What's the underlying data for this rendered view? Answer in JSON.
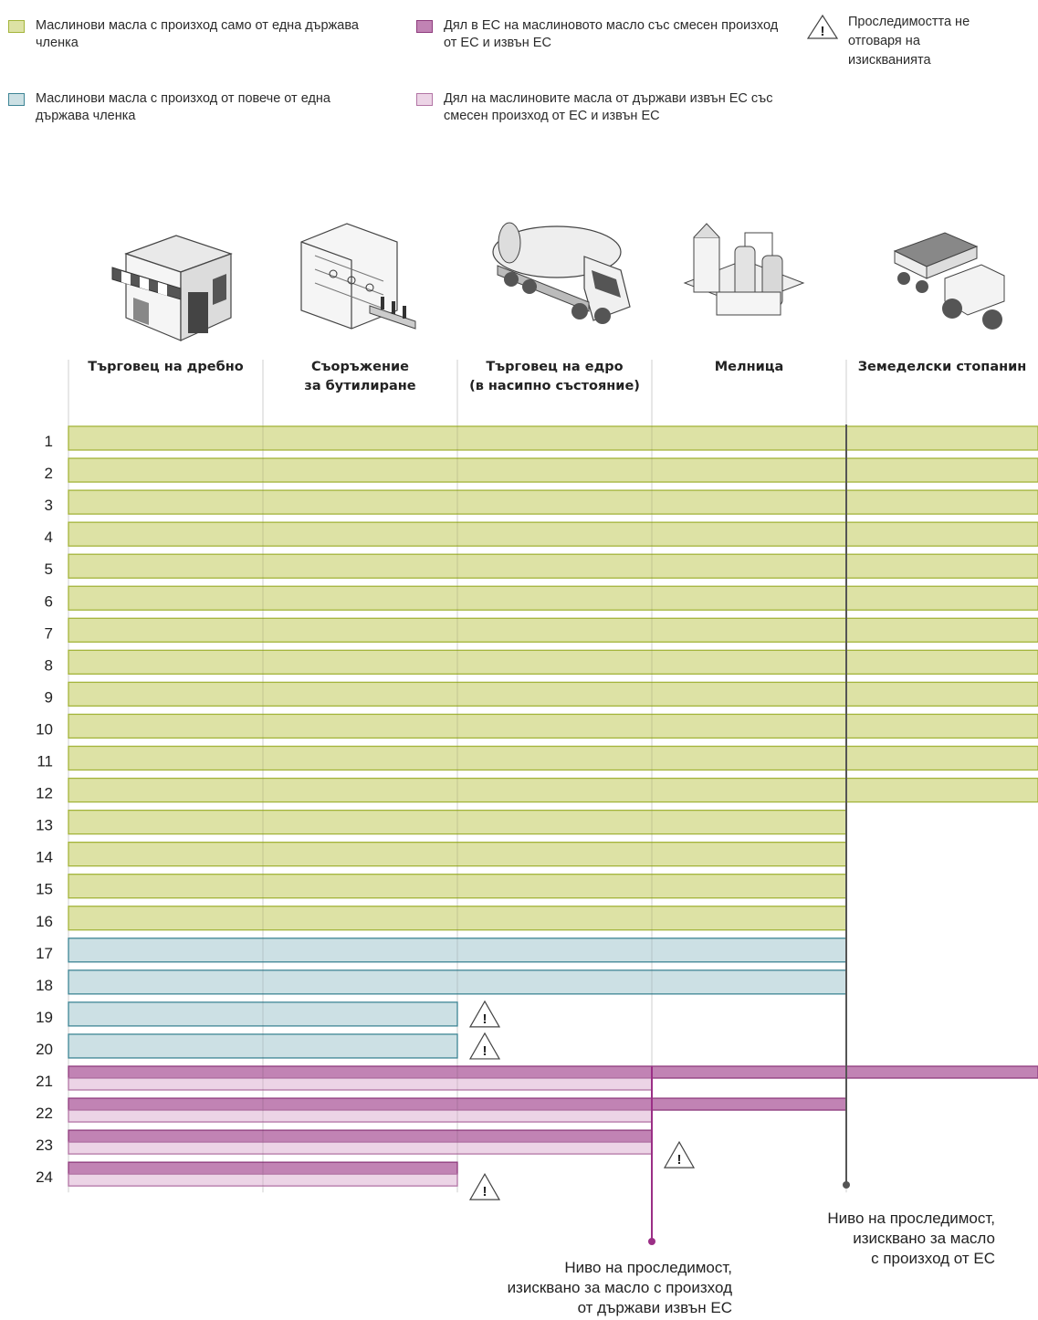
{
  "legend": {
    "single_ms": "Маслинови масла с произход само от една държава членка",
    "multi_ms": "Маслинови масла с произход от повече от една държава членка",
    "eu_share": "Дял в ЕС на маслиновото масло със смесен произход от ЕС и извън ЕС",
    "noneu_share": "Дял на маслиновите масла от държави извън ЕС със смесен произход от ЕС и извън ЕС",
    "warning": "Проследимостта не отговаря на изискванията"
  },
  "colors": {
    "single_ms": "#dde2a5",
    "single_ms_border": "#a3b43a",
    "multi_ms": "#cce0e4",
    "multi_ms_border": "#3e8595",
    "eu_share": "#c183b4",
    "eu_share_border": "#8e3b7d",
    "noneu_share": "#ecd4e6",
    "noneu_share_border": "#b275a5",
    "eu_line": "#555555",
    "noneu_line": "#9b2f86"
  },
  "chart_data": {
    "type": "table",
    "stages": [
      {
        "key": "retailer",
        "label": [
          "Търговец на дребно"
        ],
        "icon": "shop-icon"
      },
      {
        "key": "bottler",
        "label": [
          "Съоръжение",
          "за бутилиране"
        ],
        "icon": "bottling-plant-icon"
      },
      {
        "key": "wholesaler",
        "label": [
          "Търговец на едро",
          "(в насипно състояние)"
        ],
        "icon": "tanker-truck-icon"
      },
      {
        "key": "mill",
        "label": [
          "Мелница"
        ],
        "icon": "mill-icon"
      },
      {
        "key": "farmer",
        "label": [
          "Земеделски стопанин"
        ],
        "icon": "tractor-icon"
      }
    ],
    "rows": [
      {
        "n": "1",
        "type": "single_ms",
        "reach": 5,
        "warning": false
      },
      {
        "n": "2",
        "type": "single_ms",
        "reach": 5,
        "warning": false
      },
      {
        "n": "3",
        "type": "single_ms",
        "reach": 5,
        "warning": false
      },
      {
        "n": "4",
        "type": "single_ms",
        "reach": 5,
        "warning": false
      },
      {
        "n": "5",
        "type": "single_ms",
        "reach": 5,
        "warning": false
      },
      {
        "n": "6",
        "type": "single_ms",
        "reach": 5,
        "warning": false
      },
      {
        "n": "7",
        "type": "single_ms",
        "reach": 5,
        "warning": false
      },
      {
        "n": "8",
        "type": "single_ms",
        "reach": 5,
        "warning": false
      },
      {
        "n": "9",
        "type": "single_ms",
        "reach": 5,
        "warning": false
      },
      {
        "n": "10",
        "type": "single_ms",
        "reach": 5,
        "warning": false
      },
      {
        "n": "11",
        "type": "single_ms",
        "reach": 5,
        "warning": false
      },
      {
        "n": "12",
        "type": "single_ms",
        "reach": 5,
        "warning": false
      },
      {
        "n": "13",
        "type": "single_ms",
        "reach": 4,
        "warning": false
      },
      {
        "n": "14",
        "type": "single_ms",
        "reach": 4,
        "warning": false
      },
      {
        "n": "15",
        "type": "single_ms",
        "reach": 4,
        "warning": false
      },
      {
        "n": "16",
        "type": "single_ms",
        "reach": 4,
        "warning": false
      },
      {
        "n": "17",
        "type": "multi_ms",
        "reach": 4,
        "warning": false
      },
      {
        "n": "18",
        "type": "multi_ms",
        "reach": 4,
        "warning": false
      },
      {
        "n": "19",
        "type": "multi_ms",
        "reach": 2,
        "warning": true
      },
      {
        "n": "20",
        "type": "multi_ms",
        "reach": 2,
        "warning": true
      },
      {
        "n": "21",
        "type": "blend",
        "eu_reach": 5,
        "noneu_reach": 3,
        "warning": false
      },
      {
        "n": "22",
        "type": "blend",
        "eu_reach": 4,
        "noneu_reach": 3,
        "warning": false
      },
      {
        "n": "23",
        "type": "blend",
        "eu_reach": 3,
        "noneu_reach": 3,
        "warning": true
      },
      {
        "n": "24",
        "type": "blend",
        "eu_reach": 2,
        "noneu_reach": 2,
        "warning": true
      }
    ],
    "eu_required_level": 4,
    "noneu_required_level": 3
  },
  "notes": {
    "eu": [
      "Ниво на проследимост,",
      "изисквано за масло",
      "с произход от ЕС"
    ],
    "noneu": [
      "Ниво на проследимост,",
      "изисквано за масло с произход",
      "от държави извън ЕС"
    ]
  }
}
